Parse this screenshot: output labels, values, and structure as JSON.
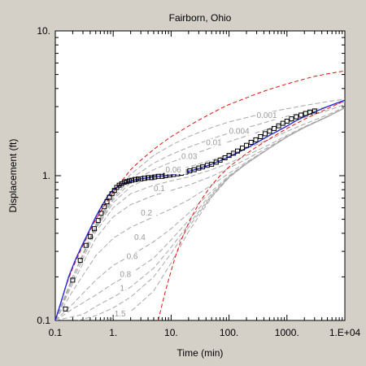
{
  "chart_data": {
    "type": "line",
    "title": "Fairborn, Ohio",
    "xlabel": "Time (min)",
    "ylabel": "Displacement (ft)",
    "x_scale": "log",
    "y_scale": "log",
    "xlim": [
      0.1,
      10000
    ],
    "ylim": [
      0.1,
      10
    ],
    "x_tick_labels": [
      "0.1",
      "1.",
      "10.",
      "100.",
      "1000.",
      "1.E+04"
    ],
    "y_tick_labels": [
      "0.1",
      "1.",
      "10."
    ],
    "observed": {
      "marker": "square",
      "x": [
        0.15,
        0.2,
        0.27,
        0.34,
        0.4,
        0.47,
        0.55,
        0.62,
        0.7,
        0.78,
        0.86,
        0.95,
        1.05,
        1.15,
        1.27,
        1.4,
        1.55,
        1.7,
        1.9,
        2.1,
        2.4,
        2.7,
        3.0,
        3.5,
        4.0,
        4.6,
        5.2,
        6.0,
        7.0,
        8.0,
        9.5,
        11,
        13,
        15,
        18,
        21,
        25,
        30,
        35,
        42,
        50,
        60,
        70,
        85,
        100,
        120,
        140,
        170,
        200,
        240,
        290,
        350,
        420,
        500,
        600,
        720,
        850,
        1000,
        1200,
        1450,
        1750,
        2100,
        2500,
        3000
      ],
      "y": [
        0.12,
        0.19,
        0.26,
        0.33,
        0.38,
        0.43,
        0.49,
        0.55,
        0.61,
        0.66,
        0.71,
        0.75,
        0.79,
        0.83,
        0.86,
        0.88,
        0.9,
        0.91,
        0.92,
        0.93,
        0.94,
        0.95,
        0.95,
        0.96,
        0.97,
        0.97,
        0.98,
        0.99,
        0.99,
        1.0,
        1.01,
        1.02,
        1.03,
        1.04,
        1.06,
        1.08,
        1.1,
        1.13,
        1.15,
        1.18,
        1.2,
        1.24,
        1.28,
        1.33,
        1.38,
        1.43,
        1.48,
        1.55,
        1.62,
        1.7,
        1.77,
        1.86,
        1.95,
        2.03,
        2.12,
        2.21,
        2.3,
        2.38,
        2.47,
        2.55,
        2.62,
        2.69,
        2.75,
        2.8
      ]
    },
    "fit": {
      "color": "#2b2bd9",
      "x": [
        0.1,
        0.13,
        0.17,
        0.22,
        0.3,
        0.4,
        0.5,
        0.65,
        0.8,
        1.0,
        1.3,
        1.7,
        2.2,
        3.0,
        4.0,
        6.0,
        8.0,
        10,
        15,
        20,
        30,
        50,
        70,
        100,
        150,
        200,
        300,
        500,
        700,
        1000,
        1500,
        2000,
        3000,
        5000,
        7000,
        10000
      ],
      "y": [
        0.1,
        0.14,
        0.2,
        0.26,
        0.34,
        0.43,
        0.52,
        0.63,
        0.72,
        0.8,
        0.86,
        0.9,
        0.93,
        0.95,
        0.97,
        0.99,
        1.0,
        1.01,
        1.04,
        1.07,
        1.12,
        1.2,
        1.27,
        1.35,
        1.46,
        1.55,
        1.69,
        1.9,
        2.04,
        2.2,
        2.42,
        2.56,
        2.76,
        3.0,
        3.16,
        3.32
      ]
    },
    "bounds": [
      {
        "color": "#e01010",
        "x": [
          0.1,
          0.15,
          0.2,
          0.3,
          0.5,
          0.7,
          1.0,
          1.5,
          2.0,
          3.0,
          5.0,
          7.0,
          10,
          15,
          20,
          30,
          50,
          70,
          100,
          200,
          300,
          500,
          1000,
          2000,
          3000,
          5000,
          10000
        ],
        "y": [
          0.1,
          0.17,
          0.23,
          0.33,
          0.5,
          0.62,
          0.77,
          0.95,
          1.1,
          1.28,
          1.52,
          1.68,
          1.86,
          2.05,
          2.2,
          2.42,
          2.7,
          2.9,
          3.1,
          3.45,
          3.68,
          3.95,
          4.3,
          4.65,
          4.85,
          5.05,
          5.3
        ]
      },
      {
        "color": "#e01010",
        "x": [
          6.0,
          7.0,
          8.0,
          10,
          12,
          15,
          20,
          25,
          30,
          40,
          50,
          70,
          100,
          150,
          200,
          300,
          500,
          1000,
          2000,
          3000,
          5000,
          10000
        ],
        "y": [
          0.1,
          0.13,
          0.16,
          0.22,
          0.28,
          0.36,
          0.47,
          0.56,
          0.64,
          0.76,
          0.86,
          1.0,
          1.15,
          1.3,
          1.42,
          1.58,
          1.8,
          2.12,
          2.45,
          2.65,
          2.9,
          3.3
        ]
      }
    ],
    "type_curves": [
      {
        "label": "0.001",
        "x": [
          0.1,
          0.2,
          0.5,
          1,
          2,
          5,
          10,
          20,
          50,
          100,
          200,
          500,
          1000,
          2000,
          5000,
          10000
        ],
        "y": [
          0.1,
          0.2,
          0.46,
          0.73,
          1.02,
          1.38,
          1.62,
          1.86,
          2.15,
          2.35,
          2.52,
          2.75,
          2.9,
          3.05,
          3.25,
          3.38
        ]
      },
      {
        "label": "0.004",
        "x": [
          0.1,
          0.2,
          0.5,
          1,
          2,
          5,
          10,
          20,
          50,
          100,
          200,
          500,
          1000,
          2000,
          5000,
          10000
        ],
        "y": [
          0.1,
          0.2,
          0.45,
          0.7,
          0.95,
          1.22,
          1.4,
          1.57,
          1.8,
          1.97,
          2.14,
          2.38,
          2.57,
          2.75,
          3.0,
          3.22
        ]
      },
      {
        "label": "0.01",
        "x": [
          0.1,
          0.2,
          0.5,
          1,
          2,
          5,
          10,
          20,
          50,
          100,
          200,
          500,
          1000,
          2000,
          5000,
          10000
        ],
        "y": [
          0.1,
          0.2,
          0.44,
          0.68,
          0.9,
          1.1,
          1.24,
          1.37,
          1.56,
          1.72,
          1.88,
          2.12,
          2.32,
          2.52,
          2.82,
          3.1
        ]
      },
      {
        "label": "0.03",
        "x": [
          0.1,
          0.2,
          0.5,
          1,
          2,
          5,
          10,
          20,
          50,
          100,
          200,
          500,
          1000,
          2000,
          5000,
          10000
        ],
        "y": [
          0.1,
          0.2,
          0.43,
          0.65,
          0.84,
          1.0,
          1.08,
          1.15,
          1.28,
          1.4,
          1.54,
          1.78,
          2.02,
          2.27,
          2.63,
          2.98
        ]
      },
      {
        "label": "0.06",
        "x": [
          0.1,
          0.2,
          0.5,
          1,
          2,
          5,
          10,
          20,
          50,
          100,
          200,
          500,
          1000,
          2000,
          5000,
          10000
        ],
        "y": [
          0.1,
          0.19,
          0.41,
          0.6,
          0.75,
          0.86,
          0.92,
          0.98,
          1.1,
          1.22,
          1.38,
          1.64,
          1.9,
          2.18,
          2.57,
          2.95
        ]
      },
      {
        "label": "0.1",
        "x": [
          0.1,
          0.2,
          0.5,
          1,
          2,
          5,
          10,
          20,
          50,
          100,
          200,
          500,
          1000,
          2000,
          5000,
          10000
        ],
        "y": [
          0.1,
          0.18,
          0.37,
          0.52,
          0.63,
          0.73,
          0.79,
          0.86,
          0.99,
          1.13,
          1.3,
          1.59,
          1.87,
          2.16,
          2.56,
          2.94
        ]
      },
      {
        "label": "0.2",
        "x": [
          0.1,
          0.2,
          0.5,
          1,
          2,
          5,
          10,
          20,
          50,
          100,
          200,
          500,
          1000,
          2000,
          5000,
          10000
        ],
        "y": [
          0.1,
          0.16,
          0.28,
          0.37,
          0.44,
          0.52,
          0.59,
          0.68,
          0.86,
          1.04,
          1.24,
          1.56,
          1.85,
          2.15,
          2.55,
          2.94
        ]
      },
      {
        "label": "0.4",
        "x": [
          0.1,
          0.2,
          0.5,
          1,
          2,
          5,
          10,
          20,
          50,
          100,
          200,
          500,
          1000,
          2000,
          5000,
          10000
        ],
        "y": [
          0.1,
          0.13,
          0.19,
          0.24,
          0.28,
          0.35,
          0.43,
          0.55,
          0.78,
          1.0,
          1.22,
          1.55,
          1.85,
          2.15,
          2.55,
          2.94
        ]
      },
      {
        "label": "0.6",
        "x": [
          0.1,
          0.2,
          0.5,
          1,
          2,
          5,
          10,
          20,
          50,
          100,
          200,
          500,
          1000,
          2000,
          5000,
          10000
        ],
        "y": [
          0.1,
          0.12,
          0.15,
          0.18,
          0.21,
          0.27,
          0.36,
          0.49,
          0.75,
          0.99,
          1.22,
          1.55,
          1.85,
          2.15,
          2.55,
          2.94
        ]
      },
      {
        "label": "0.8",
        "x": [
          0.1,
          0.3,
          0.5,
          1,
          2,
          5,
          10,
          20,
          50,
          100,
          200,
          500,
          1000,
          2000,
          5000,
          10000
        ],
        "y": [
          0.1,
          0.11,
          0.125,
          0.145,
          0.17,
          0.23,
          0.32,
          0.46,
          0.73,
          0.98,
          1.21,
          1.55,
          1.85,
          2.15,
          2.55,
          2.94
        ]
      },
      {
        "label": "1",
        "x": [
          0.25,
          0.5,
          1,
          2,
          5,
          10,
          20,
          50,
          100,
          200,
          500,
          1000,
          2000,
          5000,
          10000
        ],
        "y": [
          0.1,
          0.108,
          0.122,
          0.145,
          0.2,
          0.29,
          0.44,
          0.72,
          0.98,
          1.21,
          1.55,
          1.85,
          2.15,
          2.55,
          2.94
        ]
      },
      {
        "label": "1.5",
        "x": [
          0.7,
          1,
          2,
          5,
          10,
          20,
          50,
          100,
          200,
          500,
          1000,
          2000,
          5000,
          10000
        ],
        "y": [
          0.1,
          0.104,
          0.115,
          0.16,
          0.25,
          0.41,
          0.71,
          0.97,
          1.21,
          1.55,
          1.85,
          2.15,
          2.55,
          2.94
        ]
      }
    ],
    "type_curve_label_positions": [
      {
        "label": "0.001",
        "x": 300,
        "y": 2.5
      },
      {
        "label": "0.004",
        "x": 100,
        "y": 1.95
      },
      {
        "label": "0.01",
        "x": 40,
        "y": 1.62
      },
      {
        "label": "0.03",
        "x": 15,
        "y": 1.3
      },
      {
        "label": "0.06",
        "x": 8,
        "y": 1.05
      },
      {
        "label": "0.1",
        "x": 5,
        "y": 0.78
      },
      {
        "label": "0.2",
        "x": 3,
        "y": 0.53
      },
      {
        "label": "0.4",
        "x": 2.3,
        "y": 0.36
      },
      {
        "label": "0.6",
        "x": 1.7,
        "y": 0.265
      },
      {
        "label": "0.8",
        "x": 1.3,
        "y": 0.2
      },
      {
        "label": "1",
        "x": 1.3,
        "y": 0.16
      },
      {
        "label": "1.5",
        "x": 1.05,
        "y": 0.107
      }
    ],
    "grid": false,
    "legend": "none"
  }
}
